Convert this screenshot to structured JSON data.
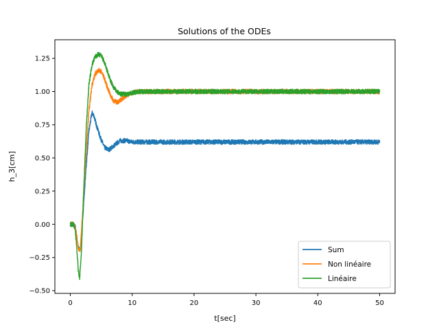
{
  "chart_data": {
    "type": "line",
    "title": "Solutions of the ODEs",
    "xlabel": "t[sec]",
    "ylabel": "h_3[cm]",
    "xlim": [
      -2.5,
      52.5
    ],
    "ylim": [
      -0.52,
      1.39
    ],
    "xticks": [
      0,
      10,
      20,
      30,
      40,
      50
    ],
    "xtick_labels": [
      "0",
      "10",
      "20",
      "30",
      "40",
      "50"
    ],
    "yticks": [
      -0.5,
      -0.25,
      0.0,
      0.25,
      0.5,
      0.75,
      1.0,
      1.25
    ],
    "ytick_labels": [
      "−0.50",
      "−0.25",
      "0.00",
      "0.25",
      "0.50",
      "0.75",
      "1.00",
      "1.25"
    ],
    "grid": false,
    "legend_position": "bottom-right",
    "series": [
      {
        "name": "Sum",
        "color": "#1f77b4",
        "x": [
          0,
          0.5,
          0.8,
          1.0,
          1.3,
          1.6,
          2.0,
          2.5,
          3.0,
          3.5,
          3.8,
          4.2,
          4.8,
          5.5,
          6.2,
          7.0,
          8.0,
          9.0,
          10.0,
          12.0,
          15.0,
          20.0,
          30.0,
          40.0,
          50.0
        ],
        "y": [
          0.0,
          0.0,
          -0.02,
          -0.08,
          -0.18,
          -0.2,
          0.05,
          0.4,
          0.7,
          0.84,
          0.82,
          0.75,
          0.66,
          0.58,
          0.56,
          0.59,
          0.63,
          0.63,
          0.62,
          0.62,
          0.62,
          0.62,
          0.62,
          0.62,
          0.62
        ]
      },
      {
        "name": "Non linéaire",
        "color": "#ff7f0e",
        "x": [
          0,
          0.5,
          0.8,
          1.0,
          1.3,
          1.6,
          2.0,
          2.5,
          3.0,
          3.5,
          4.0,
          4.5,
          5.0,
          5.5,
          6.0,
          6.5,
          7.0,
          7.5,
          8.0,
          8.5,
          9.0,
          10.0,
          11.0,
          12.0,
          15.0,
          20.0,
          30.0,
          40.0,
          50.0
        ],
        "y": [
          0.0,
          0.0,
          -0.02,
          -0.08,
          -0.18,
          -0.2,
          0.1,
          0.5,
          0.85,
          1.05,
          1.13,
          1.16,
          1.15,
          1.1,
          1.03,
          0.97,
          0.93,
          0.92,
          0.93,
          0.95,
          0.97,
          0.99,
          1.0,
          1.0,
          1.0,
          1.0,
          1.0,
          1.0,
          1.0
        ]
      },
      {
        "name": "Linéaire",
        "color": "#2ca02c",
        "x": [
          0,
          0.5,
          0.8,
          1.0,
          1.3,
          1.5,
          1.8,
          2.2,
          2.6,
          3.0,
          3.5,
          4.0,
          4.5,
          5.0,
          5.5,
          6.0,
          6.5,
          7.0,
          7.5,
          8.0,
          8.5,
          9.0,
          10.0,
          11.0,
          12.0,
          15.0,
          20.0,
          30.0,
          40.0,
          50.0
        ],
        "y": [
          0.0,
          0.0,
          -0.05,
          -0.15,
          -0.35,
          -0.41,
          -0.2,
          0.3,
          0.75,
          1.05,
          1.2,
          1.26,
          1.28,
          1.27,
          1.22,
          1.15,
          1.08,
          1.03,
          1.0,
          0.98,
          0.98,
          0.98,
          0.99,
          1.0,
          1.0,
          1.0,
          1.0,
          1.0,
          1.0,
          1.0
        ]
      }
    ]
  }
}
